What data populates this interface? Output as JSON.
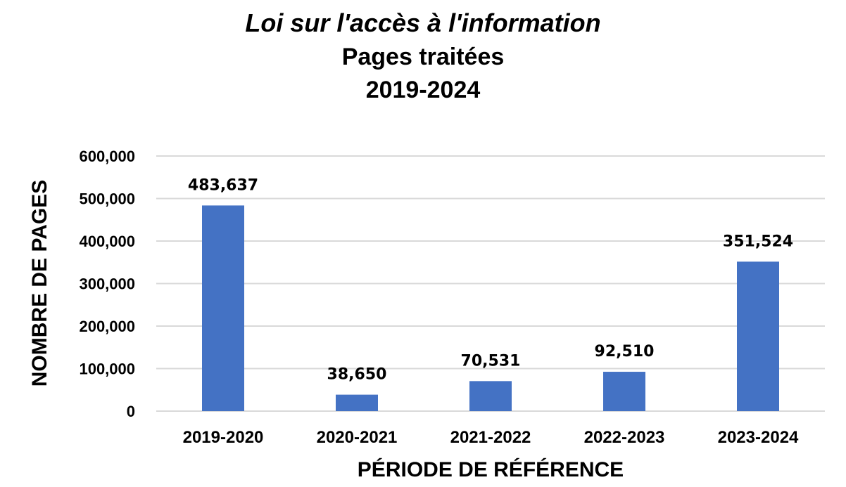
{
  "chart_data": {
    "type": "bar",
    "title": "Loi sur l'accès à l'information",
    "subtitle": "Pages traitées",
    "subtitle2": "2019-2024",
    "xlabel": "PÉRIODE DE RÉFÉRENCE",
    "ylabel": "NOMBRE DE PAGES",
    "categories": [
      "2019-2020",
      "2020-2021",
      "2021-2022",
      "2022-2023",
      "2023-2024"
    ],
    "values": [
      483637,
      38650,
      70531,
      92510,
      351524
    ],
    "value_labels": [
      "483,637",
      "38,650",
      "70,531",
      "92,510",
      "351,524"
    ],
    "ylim": [
      0,
      600000
    ],
    "yticks": [
      0,
      100000,
      200000,
      300000,
      400000,
      500000,
      600000
    ],
    "ytick_labels": [
      "0",
      "100,000",
      "200,000",
      "300,000",
      "400,000",
      "500,000",
      "600,000"
    ],
    "bar_color": "#4472c4",
    "grid": true,
    "legend": "none"
  }
}
